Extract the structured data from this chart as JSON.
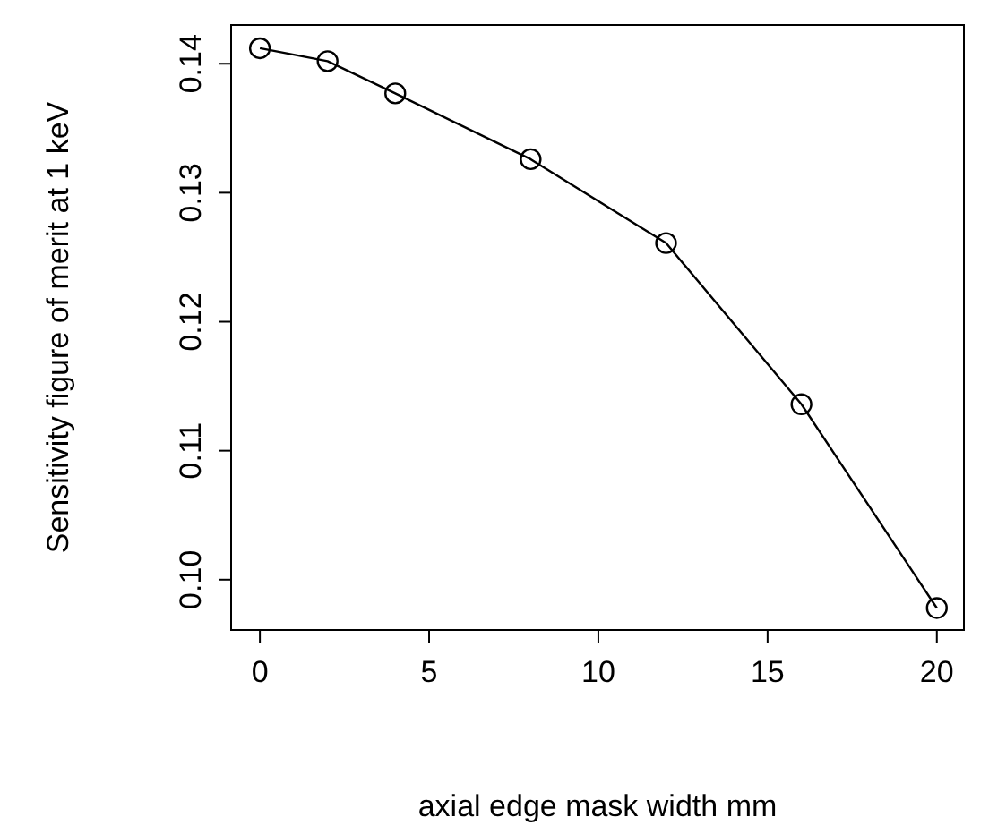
{
  "chart_data": {
    "type": "line",
    "xlabel": "axial edge mask width mm",
    "ylabel": "Sensitivity figure of merit at 1 keV",
    "x": [
      0,
      2,
      4,
      8,
      12,
      16,
      20
    ],
    "series": [
      {
        "color": "#000000",
        "values": [
          0.1412,
          0.1402,
          0.1377,
          0.1326,
          0.1261,
          0.1136,
          0.0978
        ]
      }
    ],
    "xlim": [
      -0.85,
      20.8
    ],
    "xticks": [
      0,
      5,
      10,
      15,
      20
    ],
    "ylim": [
      0.0961,
      0.143
    ],
    "yticks": [
      {
        "value": 0.1,
        "label": "0.10"
      },
      0.11,
      0.12,
      0.13,
      0.14
    ],
    "marker": "circle",
    "line_style": "solid"
  }
}
